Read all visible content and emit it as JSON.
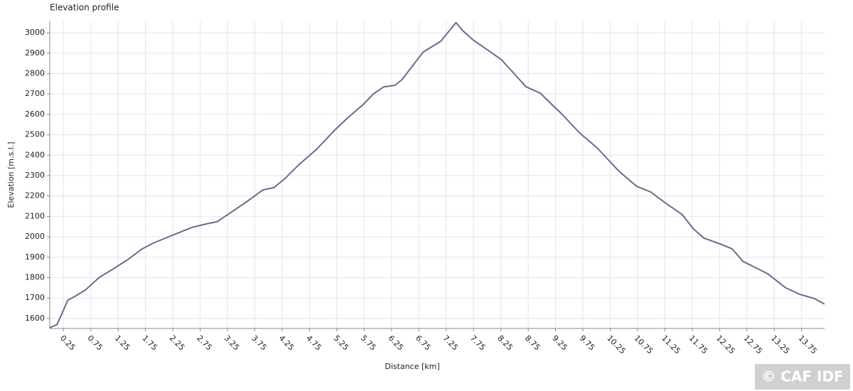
{
  "chart_data": {
    "type": "line",
    "title": "Elevation profile",
    "x_label": "Distance [km]",
    "y_label": "Elevation [m.s.l.]",
    "x": [
      0,
      0.13,
      0.23,
      0.33,
      0.46,
      0.65,
      0.91,
      1.17,
      1.43,
      1.69,
      1.89,
      2.21,
      2.6,
      2.86,
      3.06,
      3.25,
      3.58,
      3.9,
      4.1,
      4.29,
      4.55,
      4.88,
      5.2,
      5.46,
      5.72,
      5.92,
      6.11,
      6.31,
      6.44,
      6.63,
      6.83,
      7.15,
      7.43,
      7.54,
      7.74,
      8.06,
      8.26,
      8.45,
      8.71,
      8.97,
      9.17,
      9.36,
      9.69,
      10.01,
      10.4,
      10.73,
      10.99,
      11.25,
      11.57,
      11.77,
      11.96,
      12.29,
      12.48,
      12.68,
      12.87,
      13.13,
      13.46,
      13.72,
      13.98,
      14.17
    ],
    "values": [
      1555,
      1569,
      1628,
      1690,
      1708,
      1739,
      1802,
      1844,
      1889,
      1941,
      1969,
      2004,
      2046,
      2063,
      2074,
      2108,
      2168,
      2230,
      2241,
      2283,
      2352,
      2429,
      2520,
      2586,
      2645,
      2701,
      2735,
      2742,
      2770,
      2836,
      2906,
      2958,
      3050,
      3014,
      2965,
      2906,
      2868,
      2812,
      2735,
      2704,
      2652,
      2603,
      2509,
      2436,
      2324,
      2248,
      2220,
      2168,
      2108,
      2039,
      1994,
      1962,
      1941,
      1879,
      1854,
      1819,
      1750,
      1718,
      1698,
      1670
    ],
    "color": "#6b6a8c",
    "xlim": [
      0,
      14.17
    ],
    "ylim": [
      1551,
      3056
    ],
    "xticks": [
      0.25,
      0.75,
      1.25,
      1.75,
      2.25,
      2.75,
      3.25,
      3.75,
      4.25,
      4.75,
      5.25,
      5.75,
      6.25,
      6.75,
      7.25,
      7.75,
      8.25,
      8.75,
      9.25,
      9.75,
      10.25,
      10.75,
      11.25,
      11.75,
      12.25,
      12.75,
      13.25,
      13.75
    ],
    "yticks": [
      1600,
      1700,
      1800,
      1900,
      2000,
      2100,
      2200,
      2300,
      2400,
      2500,
      2600,
      2700,
      2800,
      2900,
      3000
    ],
    "grid": true
  },
  "watermark": "© CAF IDF"
}
